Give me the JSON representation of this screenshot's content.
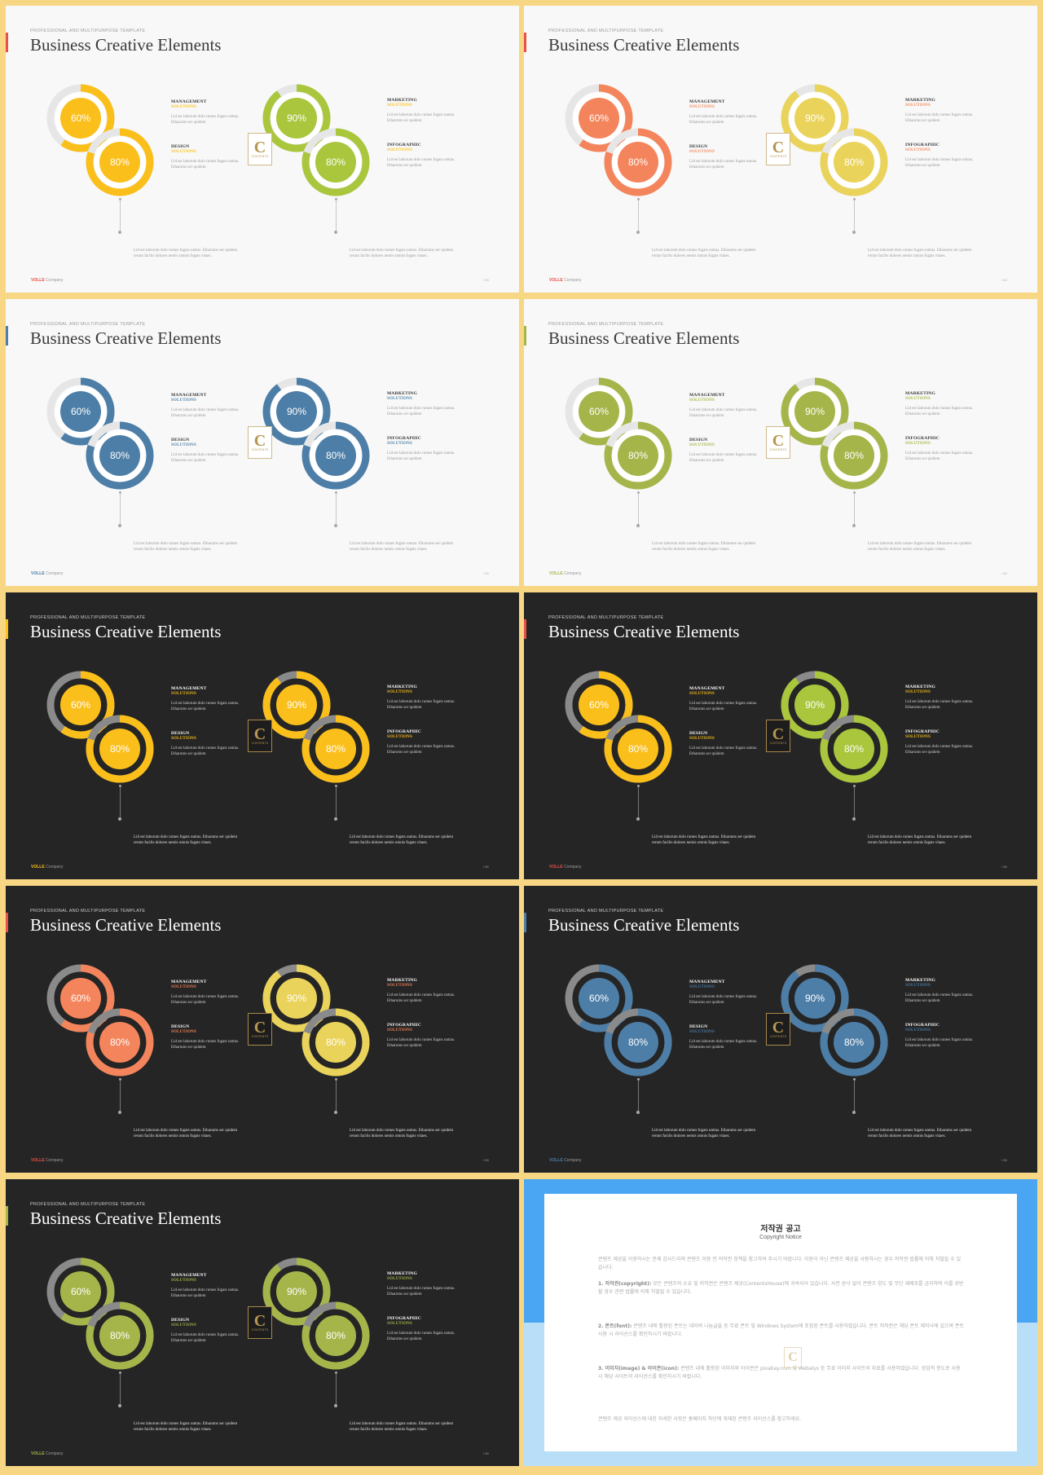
{
  "slide_common": {
    "kicker": "PROFESSIONAL AND MULTIPURPOSE TEMPLATE",
    "title": "Business Creative Elements",
    "logo_letter": "C",
    "logo_text": "CONTENTS",
    "labels": {
      "management": "MANAGEMENT",
      "design": "DESIGN",
      "marketing": "MARKETING",
      "infographic": "INFOGRAPHIC",
      "solutions": "SOLUTIONS"
    },
    "small_body": "Lid est laborum dolo rumes fugats untras. Etharums ser quidem",
    "bottom_text": "Lid est laborum dolo rumes fugats untras. Etharums ser quidem rerum facilis dolores nemis omnis fugats vitaes.",
    "footer_brand": "VOLLE",
    "footer_company": "Company",
    "page_num": "/ 00"
  },
  "rings": {
    "r1": "60%",
    "r2": "80%",
    "r3": "90%",
    "r4": "80%"
  },
  "slides": [
    {
      "theme": "light",
      "left": "#fbbf1b",
      "right": "#a9c63d",
      "label": "#fbbf1b",
      "accent": "#e8504a",
      "track": "#e6e6e6"
    },
    {
      "theme": "light",
      "left": "#f4845b",
      "right": "#ead35a",
      "label": "#f4845b",
      "accent": "#e8504a",
      "track": "#e6e6e6"
    },
    {
      "theme": "light",
      "left": "#4d7ea7",
      "right": "#4d7ea7",
      "label": "#4d7ea7",
      "accent": "#4d7ea7",
      "track": "#e6e6e6"
    },
    {
      "theme": "light",
      "left": "#a6b54a",
      "right": "#a6b54a",
      "label": "#a6b54a",
      "accent": "#a6b54a",
      "track": "#e6e6e6"
    },
    {
      "theme": "dark",
      "left": "#fbbf1b",
      "right": "#fbbf1b",
      "label": "#fbbf1b",
      "accent": "#fbbf1b",
      "track": "#8a8a8a"
    },
    {
      "theme": "dark",
      "left": "#fbbf1b",
      "right": "#a9c63d",
      "label": "#fbbf1b",
      "accent": "#e8504a",
      "track": "#8a8a8a"
    },
    {
      "theme": "dark",
      "left": "#f4845b",
      "right": "#ead35a",
      "label": "#f4845b",
      "accent": "#e8504a",
      "track": "#8a8a8a"
    },
    {
      "theme": "dark",
      "left": "#4d7ea7",
      "right": "#4d7ea7",
      "label": "#4d7ea7",
      "accent": "#4d7ea7",
      "track": "#8a8a8a"
    },
    {
      "theme": "dark",
      "left": "#a6b54a",
      "right": "#a6b54a",
      "label": "#a6b54a",
      "accent": "#a6b54a",
      "track": "#8a8a8a"
    }
  ],
  "copyright": {
    "title": "저작권 공고",
    "subtitle": "Copyright Notice",
    "intro": "콘텐츠 제공을 이용하시는 분께 감사드리며 콘텐츠 이용 전 저작권 정책을 참고하여 주시기 바랍니다. 이용이 아닌 콘텐츠 제공을 사용하시는 경우 저작권 법률에 의해 처벌될 수 있습니다.",
    "p1_head": "1. 저작권(copyright):",
    "p1": "모든 콘텐츠의 소유 및 저작권은 콘텐츠 제공(ContentsHouse)에 귀속되어 있습니다. 사전 승낙 없이 콘텐츠 양도 및 무단 재배포를 금지하며 이를 위반할 경우 관련 법률에 의해 처벌될 수 있습니다.",
    "p2_head": "2. 폰트(font):",
    "p2": "콘텐츠 내에 활용된 폰트는 네이버 나눔글꼴 등 무료 폰트 및 Windows System에 포함된 폰트를 사용하였습니다. 폰트 저작권은 해당 폰트 제작사에 있으며 폰트 사용 시 라이선스를 확인하시기 바랍니다.",
    "p3_head": "3. 이미지(image) & 아이콘(icon):",
    "p3": "콘텐츠 내에 활용된 이미지와 아이콘은 pixabay.com 및 Webalys 등 무료 이미지 사이트의 자료를 사용하였습니다. 상업적 용도로 사용 시 해당 사이트의 라이선스를 확인하시기 바랍니다.",
    "outro": "콘텐츠 제공 라이선스에 대한 자세한 사항은 홈페이지 하단에 게재된 콘텐츠 라이선스를 참고하세요."
  }
}
